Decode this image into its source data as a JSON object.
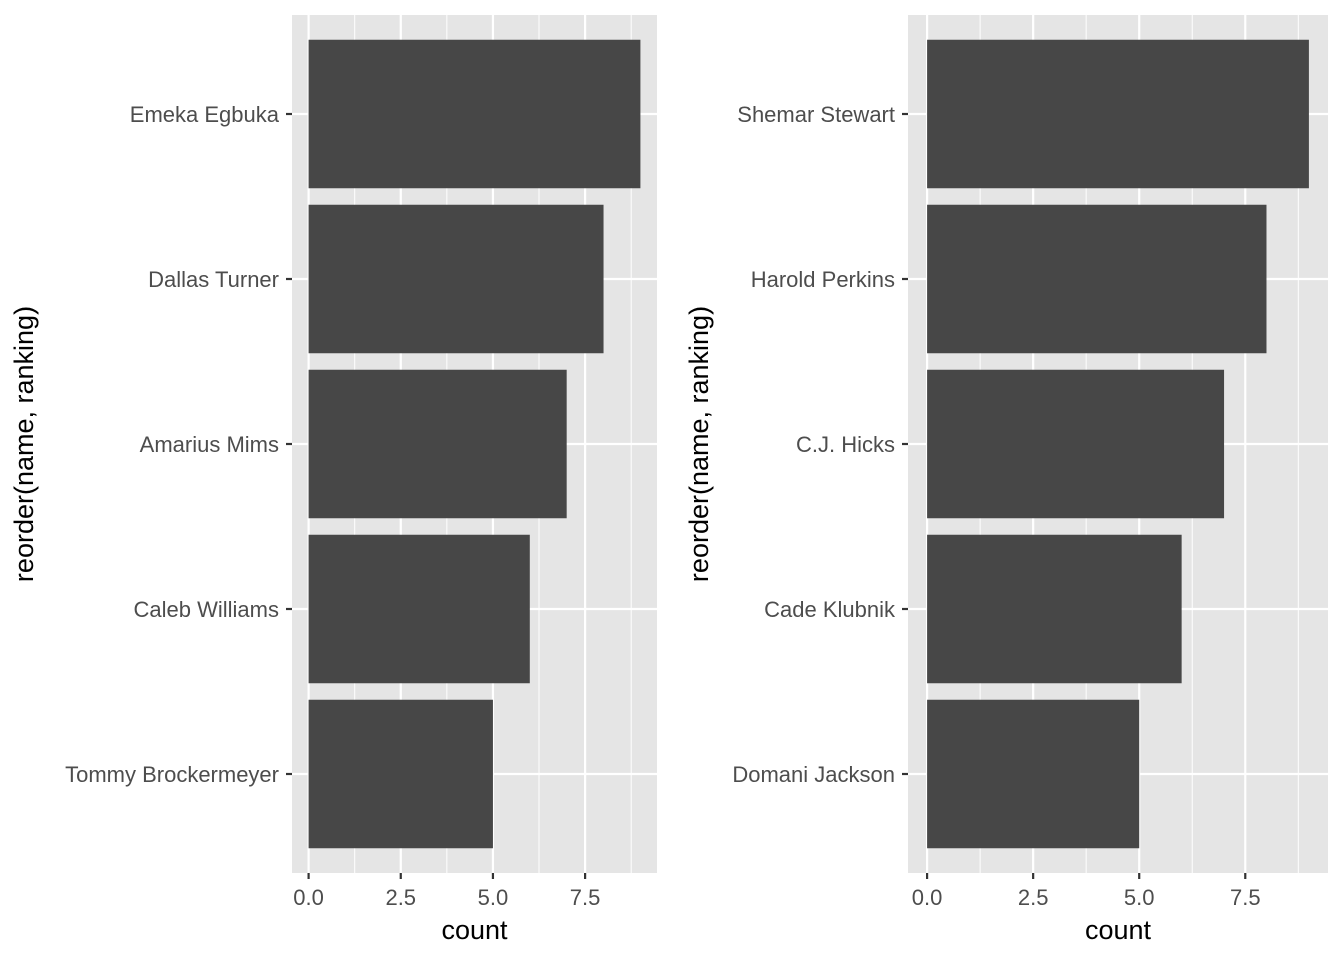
{
  "chart_data": [
    {
      "type": "bar",
      "orientation": "horizontal",
      "categories": [
        "Tommy Brockermeyer",
        "Caleb Williams",
        "Amarius Mims",
        "Dallas Turner",
        "Emeka Egbuka"
      ],
      "values": [
        5,
        6,
        7,
        8,
        9
      ],
      "xlabel": "count",
      "ylabel": "reorder(name, ranking)",
      "xlim": [
        -0.45,
        9.45
      ],
      "xticks": [
        "0.0",
        "2.5",
        "5.0",
        "7.5"
      ],
      "grid": true,
      "bar_color": "#474747",
      "panel_color": "#e5e5e5",
      "gridline_color": "#ffffff"
    },
    {
      "type": "bar",
      "orientation": "horizontal",
      "categories": [
        "Domani Jackson",
        "Cade Klubnik",
        "C.J. Hicks",
        "Harold Perkins",
        "Shemar Stewart"
      ],
      "values": [
        5,
        6,
        7,
        8,
        9
      ],
      "xlabel": "count",
      "ylabel": "reorder(name, ranking)",
      "xlim": [
        -0.45,
        9.45
      ],
      "xticks": [
        "0.0",
        "2.5",
        "5.0",
        "7.5"
      ],
      "grid": true,
      "bar_color": "#474747",
      "panel_color": "#e5e5e5",
      "gridline_color": "#ffffff"
    }
  ]
}
